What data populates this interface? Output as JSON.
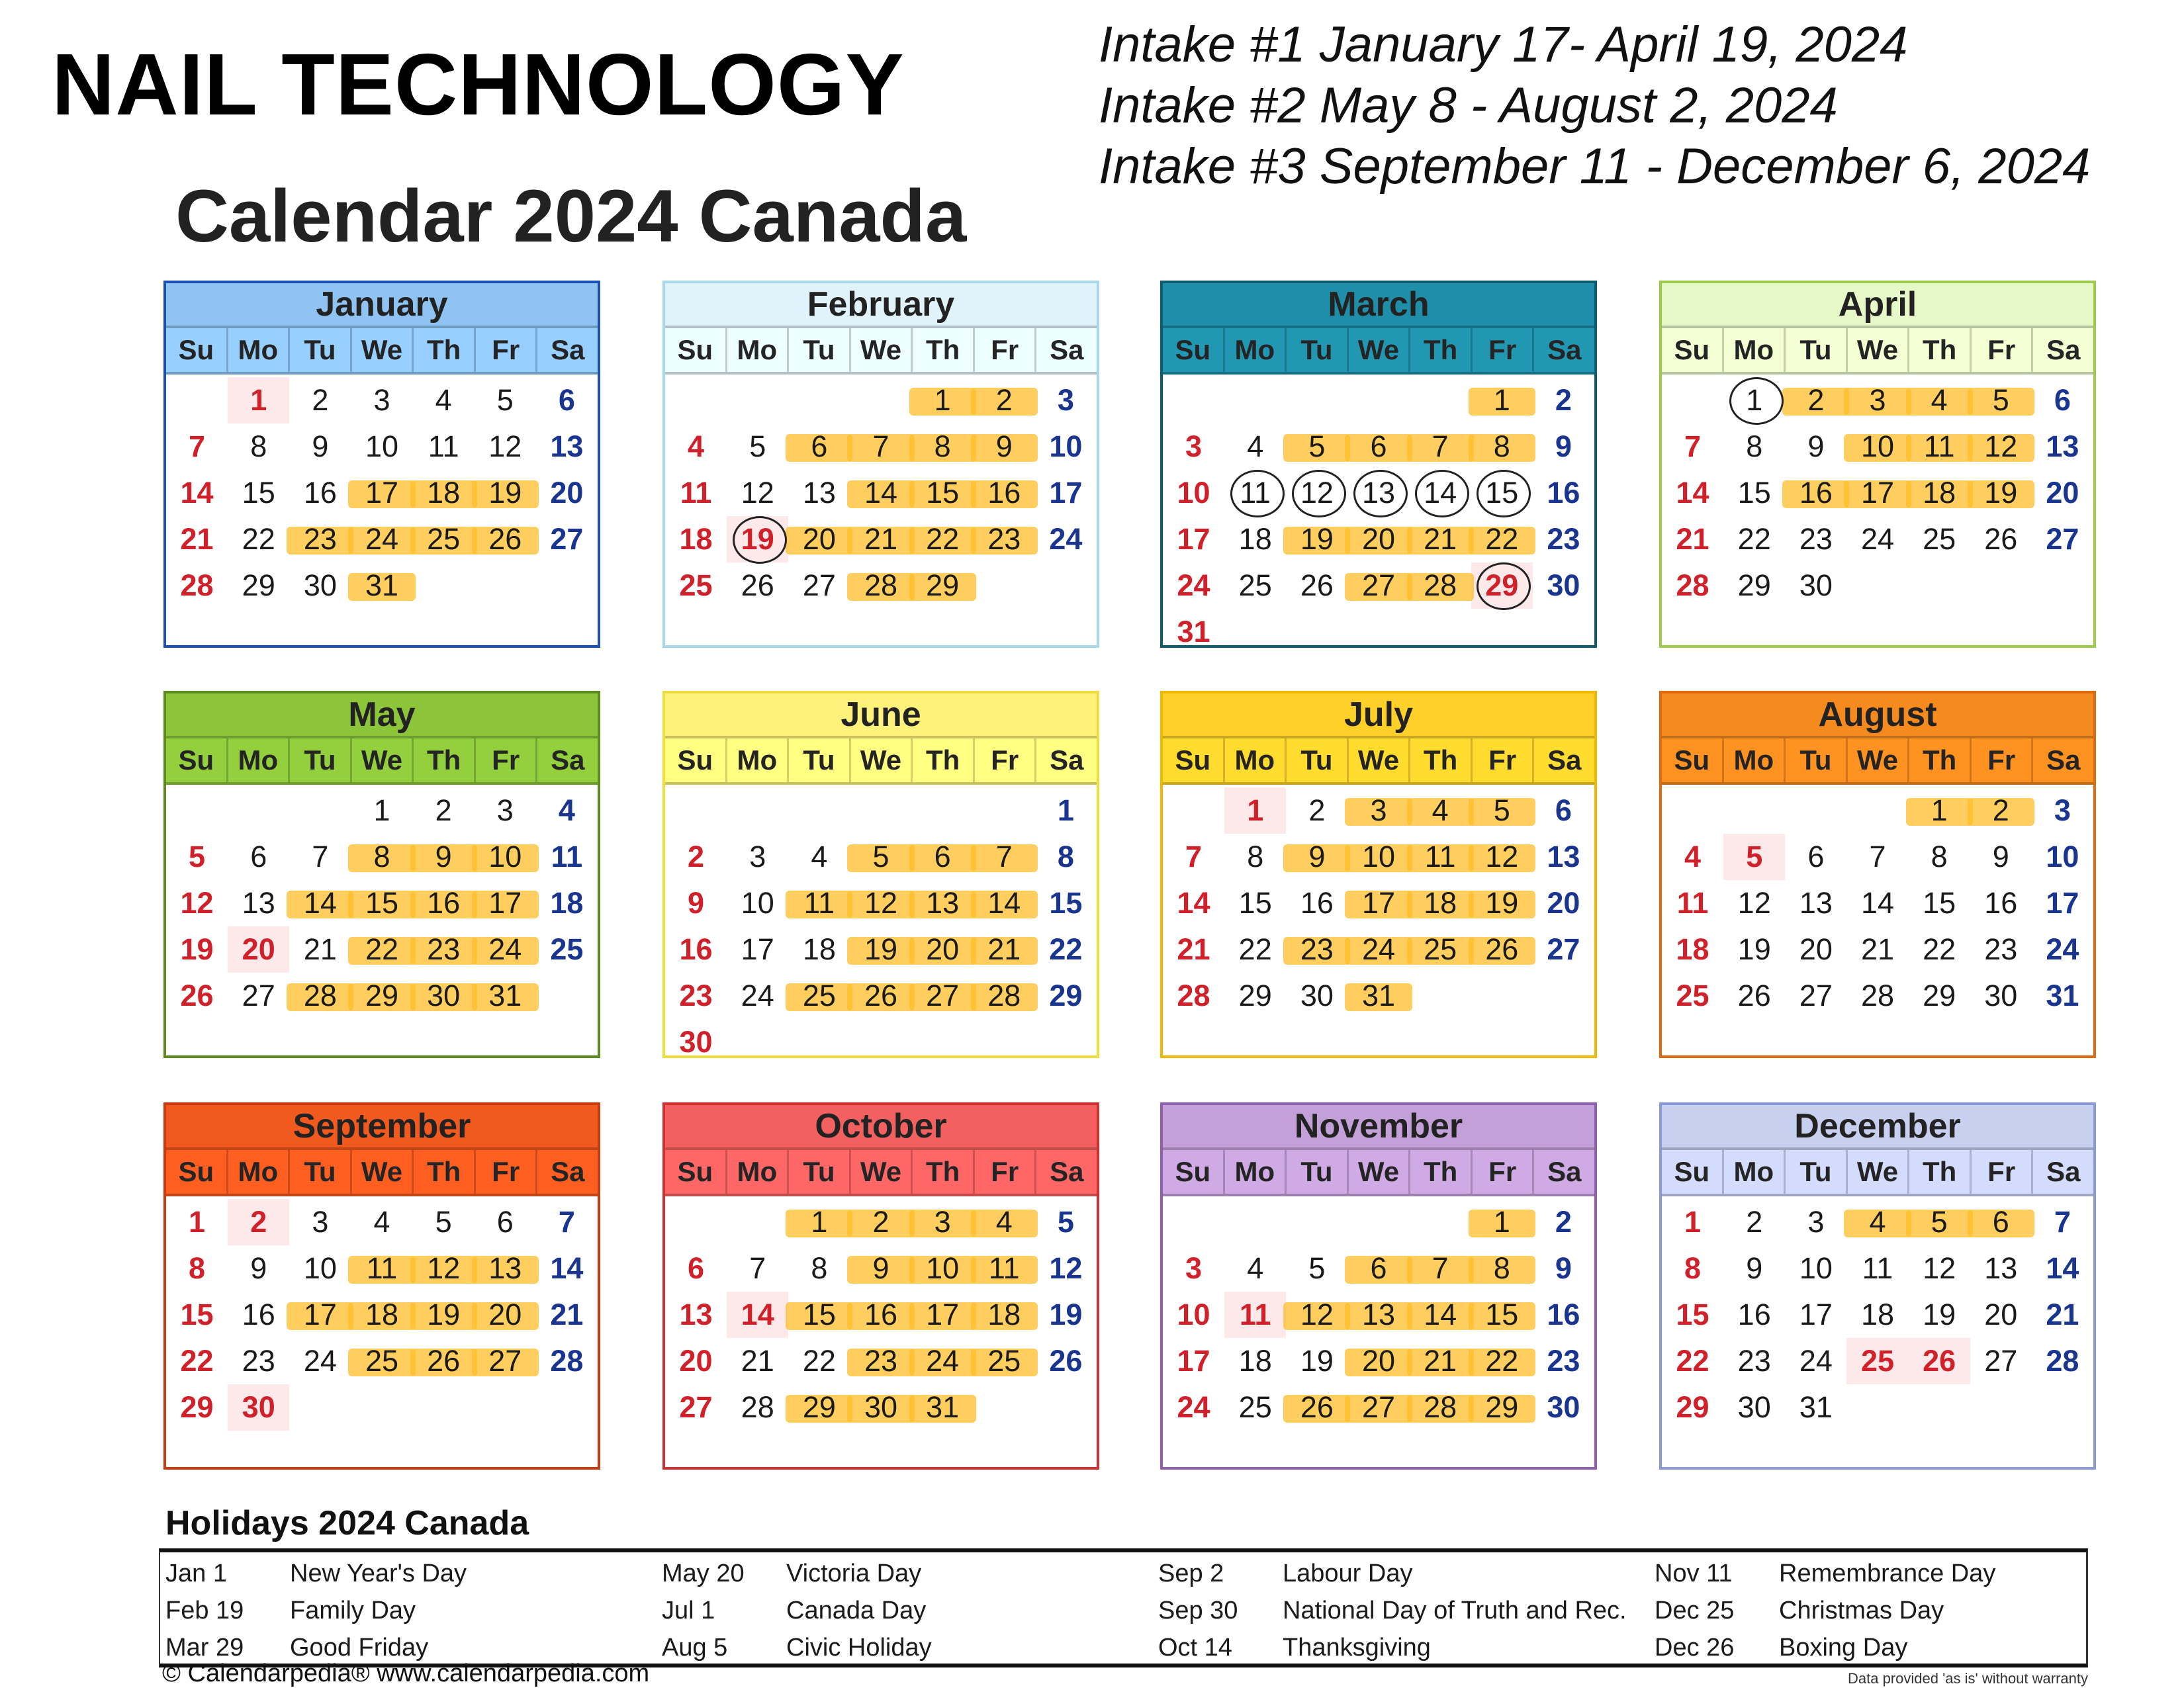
{
  "header": {
    "title": "NAIL TECHNOLOGY",
    "calendar_title": "Calendar 2024 Canada",
    "intakes": [
      "Intake #1 January 17- April 19, 2024",
      "Intake #2 May 8 - August 2, 2024",
      "Intake #3 September 11 - December 6, 2024"
    ]
  },
  "weekday_labels": [
    "Su",
    "Mo",
    "Tu",
    "We",
    "Th",
    "Fr",
    "Sa"
  ],
  "highlight_color": "#ffbe28",
  "months": [
    {
      "name": "January",
      "color": "#8ec3f2",
      "border": "#1a4fb5",
      "weeks": [
        [
          null,
          1,
          2,
          3,
          4,
          5,
          6
        ],
        [
          7,
          8,
          9,
          10,
          11,
          12,
          13
        ],
        [
          14,
          15,
          16,
          17,
          18,
          19,
          20
        ],
        [
          21,
          22,
          23,
          24,
          25,
          26,
          27
        ],
        [
          28,
          29,
          30,
          31
        ]
      ],
      "holidays": [
        1
      ],
      "highlighted": [
        17,
        18,
        19,
        23,
        24,
        25,
        26,
        31
      ],
      "circled": []
    },
    {
      "name": "February",
      "color": "#e0f3fb",
      "border": "#a9d8ea",
      "weeks": [
        [
          null,
          null,
          null,
          null,
          1,
          2,
          3
        ],
        [
          4,
          5,
          6,
          7,
          8,
          9,
          10
        ],
        [
          11,
          12,
          13,
          14,
          15,
          16,
          17
        ],
        [
          18,
          19,
          20,
          21,
          22,
          23,
          24
        ],
        [
          25,
          26,
          27,
          28,
          29
        ]
      ],
      "holidays": [
        19
      ],
      "highlighted": [
        1,
        2,
        6,
        7,
        8,
        9,
        14,
        15,
        16,
        20,
        21,
        22,
        23,
        28,
        29
      ],
      "circled": [
        19
      ]
    },
    {
      "name": "March",
      "color": "#1f8ea8",
      "border": "#0e5c70",
      "weeks": [
        [
          null,
          null,
          null,
          null,
          null,
          1,
          2
        ],
        [
          3,
          4,
          5,
          6,
          7,
          8,
          9
        ],
        [
          10,
          11,
          12,
          13,
          14,
          15,
          16
        ],
        [
          17,
          18,
          19,
          20,
          21,
          22,
          23
        ],
        [
          24,
          25,
          26,
          27,
          28,
          29,
          30
        ],
        [
          31
        ]
      ],
      "holidays": [
        29
      ],
      "highlighted": [
        1,
        5,
        6,
        7,
        8,
        19,
        20,
        21,
        22,
        27,
        28
      ],
      "circled": [
        11,
        12,
        13,
        14,
        15,
        29
      ]
    },
    {
      "name": "April",
      "color": "#e6f7c8",
      "border": "#9ccc4a",
      "weeks": [
        [
          null,
          1,
          2,
          3,
          4,
          5,
          6
        ],
        [
          7,
          8,
          9,
          10,
          11,
          12,
          13
        ],
        [
          14,
          15,
          16,
          17,
          18,
          19,
          20
        ],
        [
          21,
          22,
          23,
          24,
          25,
          26,
          27
        ],
        [
          28,
          29,
          30
        ]
      ],
      "holidays": [],
      "highlighted": [
        2,
        3,
        4,
        5,
        10,
        11,
        12,
        16,
        17,
        18,
        19
      ],
      "circled": [
        1
      ]
    },
    {
      "name": "May",
      "color": "#8cc43a",
      "border": "#5c8c20",
      "weeks": [
        [
          null,
          null,
          null,
          1,
          2,
          3,
          4
        ],
        [
          5,
          6,
          7,
          8,
          9,
          10,
          11
        ],
        [
          12,
          13,
          14,
          15,
          16,
          17,
          18
        ],
        [
          19,
          20,
          21,
          22,
          23,
          24,
          25
        ],
        [
          26,
          27,
          28,
          29,
          30,
          31
        ]
      ],
      "holidays": [
        20
      ],
      "highlighted": [
        8,
        9,
        10,
        14,
        15,
        16,
        17,
        22,
        23,
        24,
        28,
        29,
        30,
        31
      ],
      "circled": []
    },
    {
      "name": "June",
      "color": "#fff27a",
      "border": "#f0de40",
      "weeks": [
        [
          null,
          null,
          null,
          null,
          null,
          null,
          1
        ],
        [
          2,
          3,
          4,
          5,
          6,
          7,
          8
        ],
        [
          9,
          10,
          11,
          12,
          13,
          14,
          15
        ],
        [
          16,
          17,
          18,
          19,
          20,
          21,
          22
        ],
        [
          23,
          24,
          25,
          26,
          27,
          28,
          29
        ],
        [
          30
        ]
      ],
      "holidays": [],
      "highlighted": [
        5,
        6,
        7,
        11,
        12,
        13,
        14,
        19,
        20,
        21,
        25,
        26,
        27,
        28
      ],
      "circled": []
    },
    {
      "name": "July",
      "color": "#ffd02a",
      "border": "#f0b800",
      "weeks": [
        [
          null,
          1,
          2,
          3,
          4,
          5,
          6
        ],
        [
          7,
          8,
          9,
          10,
          11,
          12,
          13
        ],
        [
          14,
          15,
          16,
          17,
          18,
          19,
          20
        ],
        [
          21,
          22,
          23,
          24,
          25,
          26,
          27
        ],
        [
          28,
          29,
          30,
          31
        ]
      ],
      "holidays": [
        1
      ],
      "highlighted": [
        3,
        4,
        5,
        9,
        10,
        11,
        12,
        17,
        18,
        19,
        23,
        24,
        25,
        26,
        31
      ],
      "circled": []
    },
    {
      "name": "August",
      "color": "#f58a1f",
      "border": "#e06a10",
      "weeks": [
        [
          null,
          null,
          null,
          null,
          1,
          2,
          3
        ],
        [
          4,
          5,
          6,
          7,
          8,
          9,
          10
        ],
        [
          11,
          12,
          13,
          14,
          15,
          16,
          17
        ],
        [
          18,
          19,
          20,
          21,
          22,
          23,
          24
        ],
        [
          25,
          26,
          27,
          28,
          29,
          30,
          31
        ]
      ],
      "holidays": [
        5
      ],
      "highlighted": [
        1,
        2
      ],
      "circled": []
    },
    {
      "name": "September",
      "color": "#f05a1e",
      "border": "#c83a10",
      "weeks": [
        [
          1,
          2,
          3,
          4,
          5,
          6,
          7
        ],
        [
          8,
          9,
          10,
          11,
          12,
          13,
          14
        ],
        [
          15,
          16,
          17,
          18,
          19,
          20,
          21
        ],
        [
          22,
          23,
          24,
          25,
          26,
          27,
          28
        ],
        [
          29,
          30
        ]
      ],
      "holidays": [
        2,
        30
      ],
      "highlighted": [
        11,
        12,
        13,
        17,
        18,
        19,
        20,
        25,
        26,
        27
      ],
      "circled": []
    },
    {
      "name": "October",
      "color": "#f26060",
      "border": "#d03030",
      "weeks": [
        [
          null,
          null,
          1,
          2,
          3,
          4,
          5
        ],
        [
          6,
          7,
          8,
          9,
          10,
          11,
          12
        ],
        [
          13,
          14,
          15,
          16,
          17,
          18,
          19
        ],
        [
          20,
          21,
          22,
          23,
          24,
          25,
          26
        ],
        [
          27,
          28,
          29,
          30,
          31
        ]
      ],
      "holidays": [
        14
      ],
      "highlighted": [
        1,
        2,
        3,
        4,
        9,
        10,
        11,
        15,
        16,
        17,
        18,
        23,
        24,
        25,
        29,
        30,
        31
      ],
      "circled": []
    },
    {
      "name": "November",
      "color": "#c4a0d8",
      "border": "#9060b0",
      "weeks": [
        [
          null,
          null,
          null,
          null,
          null,
          1,
          2
        ],
        [
          3,
          4,
          5,
          6,
          7,
          8,
          9
        ],
        [
          10,
          11,
          12,
          13,
          14,
          15,
          16
        ],
        [
          17,
          18,
          19,
          20,
          21,
          22,
          23
        ],
        [
          24,
          25,
          26,
          27,
          28,
          29,
          30
        ]
      ],
      "holidays": [
        11
      ],
      "highlighted": [
        1,
        6,
        7,
        8,
        12,
        13,
        14,
        15,
        20,
        21,
        22,
        26,
        27,
        28,
        29
      ],
      "circled": []
    },
    {
      "name": "December",
      "color": "#c8d0f0",
      "border": "#8a9ad8",
      "weeks": [
        [
          1,
          2,
          3,
          4,
          5,
          6,
          7
        ],
        [
          8,
          9,
          10,
          11,
          12,
          13,
          14
        ],
        [
          15,
          16,
          17,
          18,
          19,
          20,
          21
        ],
        [
          22,
          23,
          24,
          25,
          26,
          27,
          28
        ],
        [
          29,
          30,
          31
        ]
      ],
      "holidays": [
        25,
        26
      ],
      "highlighted": [
        4,
        5,
        6
      ],
      "circled": []
    }
  ],
  "holidays_section": {
    "title": "Holidays 2024 Canada",
    "columns": [
      [
        {
          "date": "Jan 1",
          "name": "New Year's Day"
        },
        {
          "date": "Feb 19",
          "name": "Family Day"
        },
        {
          "date": "Mar 29",
          "name": "Good Friday"
        }
      ],
      [
        {
          "date": "May 20",
          "name": "Victoria Day"
        },
        {
          "date": "Jul 1",
          "name": "Canada Day"
        },
        {
          "date": "Aug 5",
          "name": "Civic Holiday"
        }
      ],
      [
        {
          "date": "Sep 2",
          "name": "Labour Day"
        },
        {
          "date": "Sep 30",
          "name": "National Day of Truth and Rec."
        },
        {
          "date": "Oct 14",
          "name": "Thanksgiving"
        }
      ],
      [
        {
          "date": "Nov 11",
          "name": "Remembrance Day"
        },
        {
          "date": "Dec 25",
          "name": "Christmas Day"
        },
        {
          "date": "Dec 26",
          "name": "Boxing Day"
        }
      ]
    ]
  },
  "footer": {
    "copyright": "© Calendarpedia®   www.calendarpedia.com",
    "disclaimer": "Data provided 'as is' without warranty"
  }
}
